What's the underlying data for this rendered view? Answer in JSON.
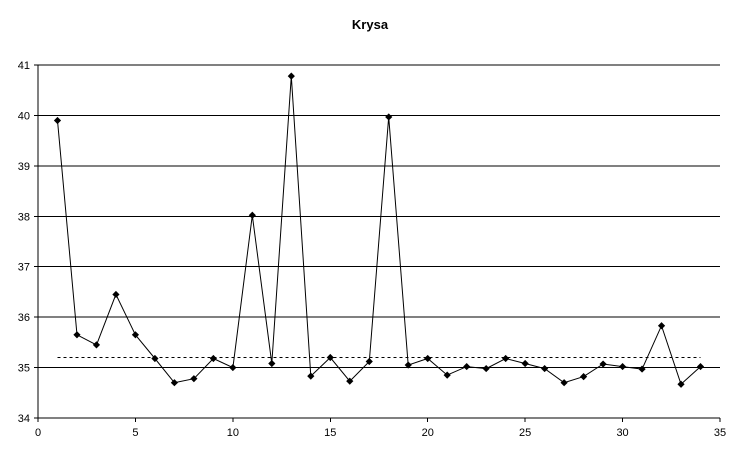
{
  "chart_data": {
    "type": "line",
    "title": "Krysa",
    "xlabel": "",
    "ylabel": "",
    "xlim": [
      0,
      35
    ],
    "ylim": [
      34,
      41
    ],
    "x_ticks": [
      0,
      5,
      10,
      15,
      20,
      25,
      30,
      35
    ],
    "y_ticks": [
      34,
      35,
      36,
      37,
      38,
      39,
      40,
      41
    ],
    "grid": "horizontal",
    "legend": "none",
    "colors": {
      "series": "#000000",
      "reference": "#000000",
      "grid": "#000000"
    },
    "series": [
      {
        "marker": "diamond",
        "line": "solid",
        "x": [
          1,
          2,
          3,
          4,
          5,
          6,
          7,
          8,
          9,
          10,
          11,
          12,
          13,
          14,
          15,
          16,
          17,
          18,
          19,
          20,
          21,
          22,
          23,
          24,
          25,
          26,
          27,
          28,
          29,
          30,
          31,
          32,
          33,
          34
        ],
        "values": [
          39.9,
          35.65,
          35.45,
          36.45,
          35.65,
          35.18,
          34.7,
          34.78,
          35.18,
          35.0,
          38.02,
          35.08,
          40.78,
          34.83,
          35.2,
          34.73,
          35.12,
          39.97,
          35.05,
          35.18,
          34.85,
          35.02,
          34.98,
          35.18,
          35.08,
          34.98,
          34.7,
          34.82,
          35.07,
          35.02,
          34.97,
          35.83,
          34.67,
          35.02
        ]
      },
      {
        "line": "dashed",
        "x": [
          1,
          34
        ],
        "values": [
          35.2,
          35.2
        ]
      }
    ]
  }
}
